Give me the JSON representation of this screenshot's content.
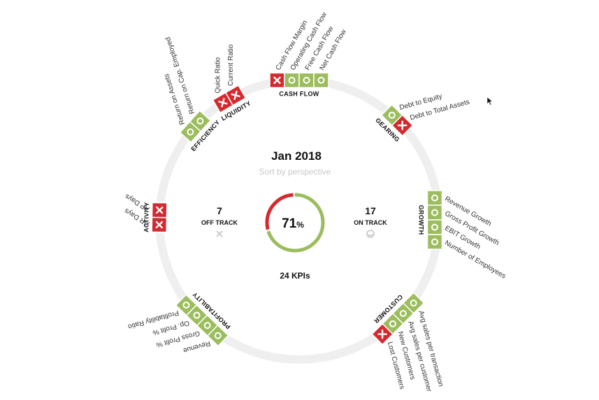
{
  "header": {
    "title": "Jan 2018",
    "subtitle": "Sort by perspective"
  },
  "summary": {
    "off_track_count": "7",
    "off_track_label": "OFF TRACK",
    "on_track_count": "17",
    "on_track_label": "ON TRACK",
    "percent_value": "71",
    "percent_symbol": "%",
    "kpi_total_label": "24 KPIs"
  },
  "colors": {
    "on_track": "#9cbd5e",
    "off_track": "#d42a2f",
    "ring": "#efefef"
  },
  "chart_data": {
    "type": "radial-status",
    "on_track_fraction": 0.71,
    "groups": [
      {
        "name": "CASH FLOW",
        "kpis": [
          {
            "label": "Cash Flow Margin",
            "status": "off"
          },
          {
            "label": "Operating Cash Flow",
            "status": "on"
          },
          {
            "label": "Free Cash Flow",
            "status": "on"
          },
          {
            "label": "Net Cash Flow",
            "status": "on"
          }
        ]
      },
      {
        "name": "GEARING",
        "kpis": [
          {
            "label": "Debt to Equity",
            "status": "on"
          },
          {
            "label": "Debt to Total Assets",
            "status": "off"
          }
        ]
      },
      {
        "name": "GROWTH",
        "kpis": [
          {
            "label": "Revenue Growth",
            "status": "on"
          },
          {
            "label": "Gross Profit Growth",
            "status": "on"
          },
          {
            "label": "EBIT Growth",
            "status": "on"
          },
          {
            "label": "Number of Employees",
            "status": "on"
          }
        ]
      },
      {
        "name": "CUSTOMER",
        "kpis": [
          {
            "label": "Avg sales per transaction",
            "status": "on"
          },
          {
            "label": "Avg sales per customer",
            "status": "on"
          },
          {
            "label": "New Customers",
            "status": "on"
          },
          {
            "label": "Lost Customers",
            "status": "off"
          }
        ]
      },
      {
        "name": "PROFITABILITY",
        "kpis": [
          {
            "label": "Revenue",
            "status": "on"
          },
          {
            "label": "Gross Profit %",
            "status": "on"
          },
          {
            "label": "Op. Profit %",
            "status": "on"
          },
          {
            "label": "Profitability Ratio",
            "status": "on"
          }
        ]
      },
      {
        "name": "ACTIVITY",
        "kpis": [
          {
            "label": "AR Days",
            "status": "off"
          },
          {
            "label": "AP Days",
            "status": "off"
          }
        ]
      },
      {
        "name": "EFFICIENCY",
        "kpis": [
          {
            "label": "Return on Assets",
            "status": "on"
          },
          {
            "label": "Return on Cap. Employed",
            "status": "on"
          }
        ]
      },
      {
        "name": "LIQUIDITY",
        "kpis": [
          {
            "label": "Quick Ratio",
            "status": "off"
          },
          {
            "label": "Current Ratio",
            "status": "off"
          }
        ]
      }
    ]
  }
}
